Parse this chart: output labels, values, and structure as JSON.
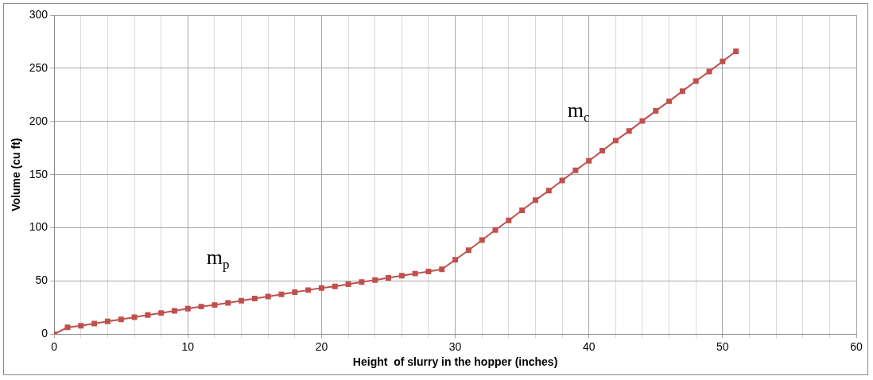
{
  "chart_data": {
    "type": "line",
    "xlabel": "Height  of slurry in the hopper (inches)",
    "ylabel": "Volume (cu ft)",
    "x": [
      0,
      1,
      2,
      3,
      4,
      5,
      6,
      7,
      8,
      9,
      10,
      11,
      12,
      13,
      14,
      15,
      16,
      17,
      18,
      19,
      20,
      21,
      22,
      23,
      24,
      25,
      26,
      27,
      28,
      29,
      30,
      31,
      32,
      33,
      34,
      35,
      36,
      37,
      38,
      39,
      40,
      41,
      42,
      43,
      44,
      45,
      46,
      47,
      48,
      49,
      50,
      51
    ],
    "series": [
      {
        "color": "#c0504d",
        "values": [
          0,
          6.5,
          8,
          10,
          12,
          14,
          16,
          18,
          20,
          22,
          24,
          26,
          27.5,
          29.5,
          31.5,
          33.5,
          35.5,
          37.5,
          39.5,
          41.5,
          43.5,
          45,
          47,
          49,
          51,
          53,
          55,
          57,
          59,
          61,
          70,
          79,
          88.5,
          98,
          107,
          116.5,
          126,
          135,
          144.5,
          154,
          163,
          172.5,
          182,
          191,
          200.5,
          210,
          219,
          228.5,
          238,
          247,
          256.5,
          266
        ]
      }
    ],
    "xlim": [
      0,
      60
    ],
    "xticks": [
      0,
      {
        "value": 2,
        "label": null
      },
      {
        "value": 4,
        "label": null
      },
      {
        "value": 6,
        "label": null
      },
      {
        "value": 8,
        "label": null
      },
      10,
      {
        "value": 12,
        "label": null
      },
      {
        "value": 14,
        "label": null
      },
      {
        "value": 16,
        "label": null
      },
      {
        "value": 18,
        "label": null
      },
      20,
      {
        "value": 22,
        "label": null
      },
      {
        "value": 24,
        "label": null
      },
      {
        "value": 26,
        "label": null
      },
      {
        "value": 28,
        "label": null
      },
      30,
      {
        "value": 32,
        "label": null
      },
      {
        "value": 34,
        "label": null
      },
      {
        "value": 36,
        "label": null
      },
      {
        "value": 38,
        "label": null
      },
      40,
      {
        "value": 42,
        "label": null
      },
      {
        "value": 44,
        "label": null
      },
      {
        "value": 46,
        "label": null
      },
      {
        "value": 48,
        "label": null
      },
      50,
      {
        "value": 52,
        "label": null
      },
      {
        "value": 54,
        "label": null
      },
      {
        "value": 56,
        "label": null
      },
      {
        "value": 58,
        "label": null
      },
      60
    ],
    "ylim": [
      0,
      300
    ],
    "yticks": [
      0,
      50,
      100,
      150,
      200,
      250,
      300
    ],
    "grid": true,
    "legend": false,
    "marker": "square",
    "line_style": "solid",
    "annotations": [
      "m$_{p}$",
      "m$_{c}$"
    ]
  }
}
